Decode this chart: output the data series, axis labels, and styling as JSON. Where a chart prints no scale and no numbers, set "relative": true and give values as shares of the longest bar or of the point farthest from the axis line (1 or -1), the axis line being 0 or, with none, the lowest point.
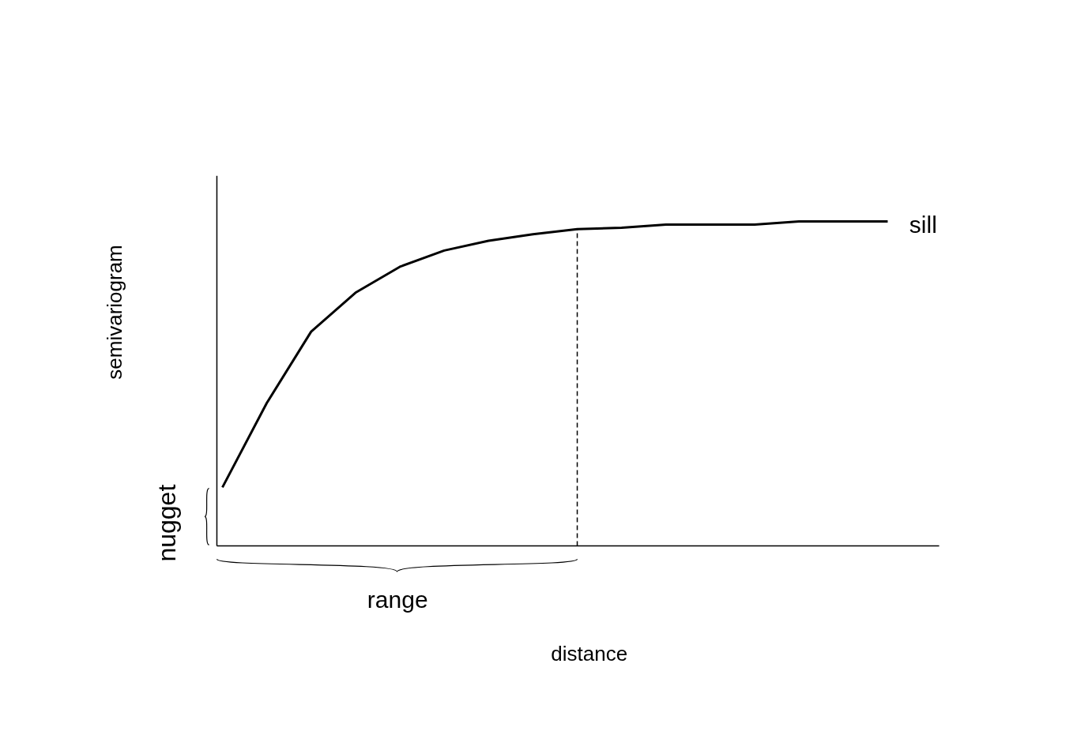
{
  "chart_data": {
    "type": "line",
    "relative": true,
    "categories": [
      null,
      null,
      null,
      null,
      null,
      null,
      null,
      null,
      null,
      null,
      null,
      null,
      null,
      null,
      null,
      null
    ],
    "series": [
      {
        "color": "#000000",
        "values": [
          0.18,
          0.44,
          0.66,
          0.78,
          0.86,
          0.91,
          0.94,
          0.96,
          0.976,
          0.98,
          0.99,
          0.99,
          0.99,
          1.0,
          1.0,
          1.0
        ]
      }
    ],
    "xlabel": "distance",
    "ylabel": "semivariogram",
    "annotations": [
      "sill",
      "nugget",
      "range"
    ]
  }
}
